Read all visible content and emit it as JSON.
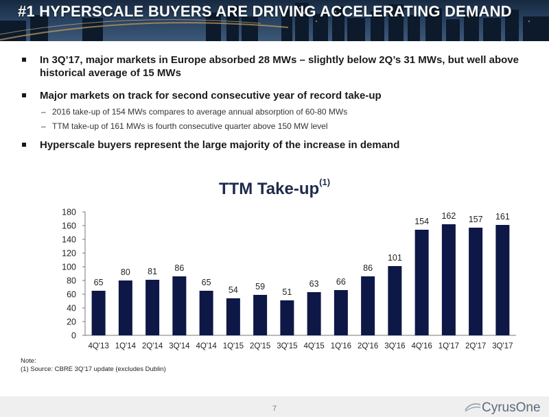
{
  "banner": {
    "title": "#1 HYPERSCALE BUYERS ARE DRIVING ACCELERATING DEMAND"
  },
  "bullets": [
    {
      "text": "In 3Q’17, major markets in Europe absorbed 28 MWs – slightly below 2Q’s 31 MWs, but well above historical average of 15 MWs",
      "subs": []
    },
    {
      "text": "Major markets on track for second consecutive year of record take-up",
      "subs": [
        "2016 take-up of 154 MWs compares to average annual absorption of 60-80 MWs",
        "TTM take-up of 161 MWs is fourth consecutive quarter above 150 MW level"
      ]
    },
    {
      "text": "Hyperscale buyers represent the large majority of the increase in demand",
      "subs": []
    }
  ],
  "bullet_dash": "–",
  "chart_data": {
    "type": "bar",
    "title": "TTM Take-up",
    "title_superscript": "(1)",
    "categories": [
      "4Q'13",
      "1Q'14",
      "2Q'14",
      "3Q'14",
      "4Q'14",
      "1Q'15",
      "2Q'15",
      "3Q'15",
      "4Q'15",
      "1Q'16",
      "2Q'16",
      "3Q'16",
      "4Q'16",
      "1Q'17",
      "2Q'17",
      "3Q'17"
    ],
    "values": [
      65,
      80,
      81,
      86,
      65,
      54,
      59,
      51,
      63,
      66,
      86,
      101,
      154,
      162,
      157,
      161
    ],
    "yticks": [
      0,
      20,
      40,
      60,
      80,
      100,
      120,
      140,
      160,
      180
    ],
    "ylim": [
      0,
      180
    ],
    "xlabel": "",
    "ylabel": "",
    "bar_color": "#0d1846",
    "grid": false
  },
  "note": {
    "label": "Note:",
    "source": "(1) Source: CBRE 3Q’17 update (excludes Dublin)"
  },
  "footer": {
    "page_number": "7",
    "logo_text": "CyrusOne"
  }
}
